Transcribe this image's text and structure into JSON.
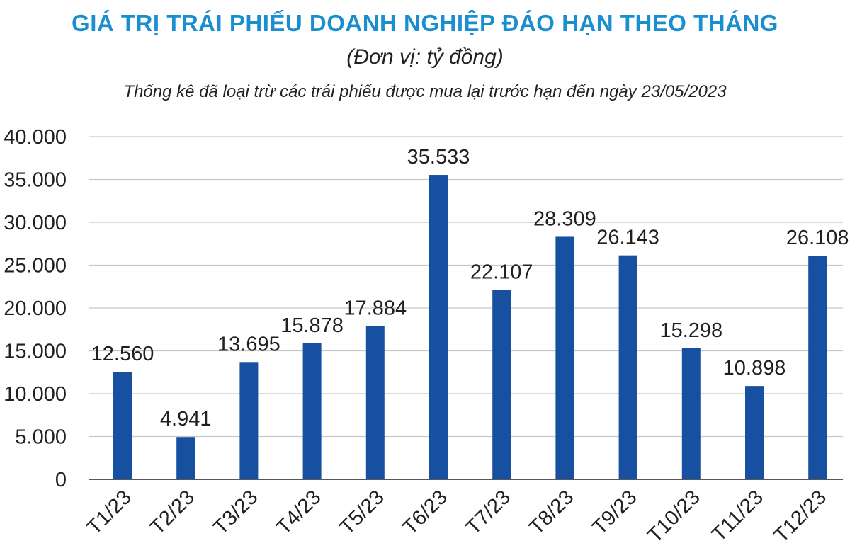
{
  "chart_data": {
    "type": "bar",
    "title": "GIÁ TRỊ TRÁI PHIẾU DOANH NGHIỆP ĐÁO HẠN THEO THÁNG",
    "subtitle": "(Đơn vị: tỷ đồng)",
    "note": "Thống kê đã loại trừ các trái phiếu được mua lại trước hạn đến ngày 23/05/2023",
    "categories": [
      "T1/23",
      "T2/23",
      "T3/23",
      "T4/23",
      "T5/23",
      "T6/23",
      "T7/23",
      "T8/23",
      "T9/23",
      "T10/23",
      "T11/23",
      "T12/23"
    ],
    "values": [
      12560,
      4941,
      13695,
      15878,
      17884,
      35533,
      22107,
      28309,
      26143,
      15298,
      10898,
      26108
    ],
    "value_labels": [
      "12.560",
      "4.941",
      "13.695",
      "15.878",
      "17.884",
      "35.533",
      "22.107",
      "28.309",
      "26.143",
      "15.298",
      "10.898",
      "26.108"
    ],
    "yticks": [
      0,
      5000,
      10000,
      15000,
      20000,
      25000,
      30000,
      35000,
      40000
    ],
    "ytick_labels": [
      "0",
      "5.000",
      "10.000",
      "15.000",
      "20.000",
      "25.000",
      "30.000",
      "35.000",
      "40.000"
    ],
    "ylim": [
      0,
      40000
    ],
    "grid": true,
    "colors": {
      "bar": "#1750a0",
      "grid": "#c8c8c8",
      "title": "#1a8fd0",
      "text": "#231f20"
    }
  }
}
